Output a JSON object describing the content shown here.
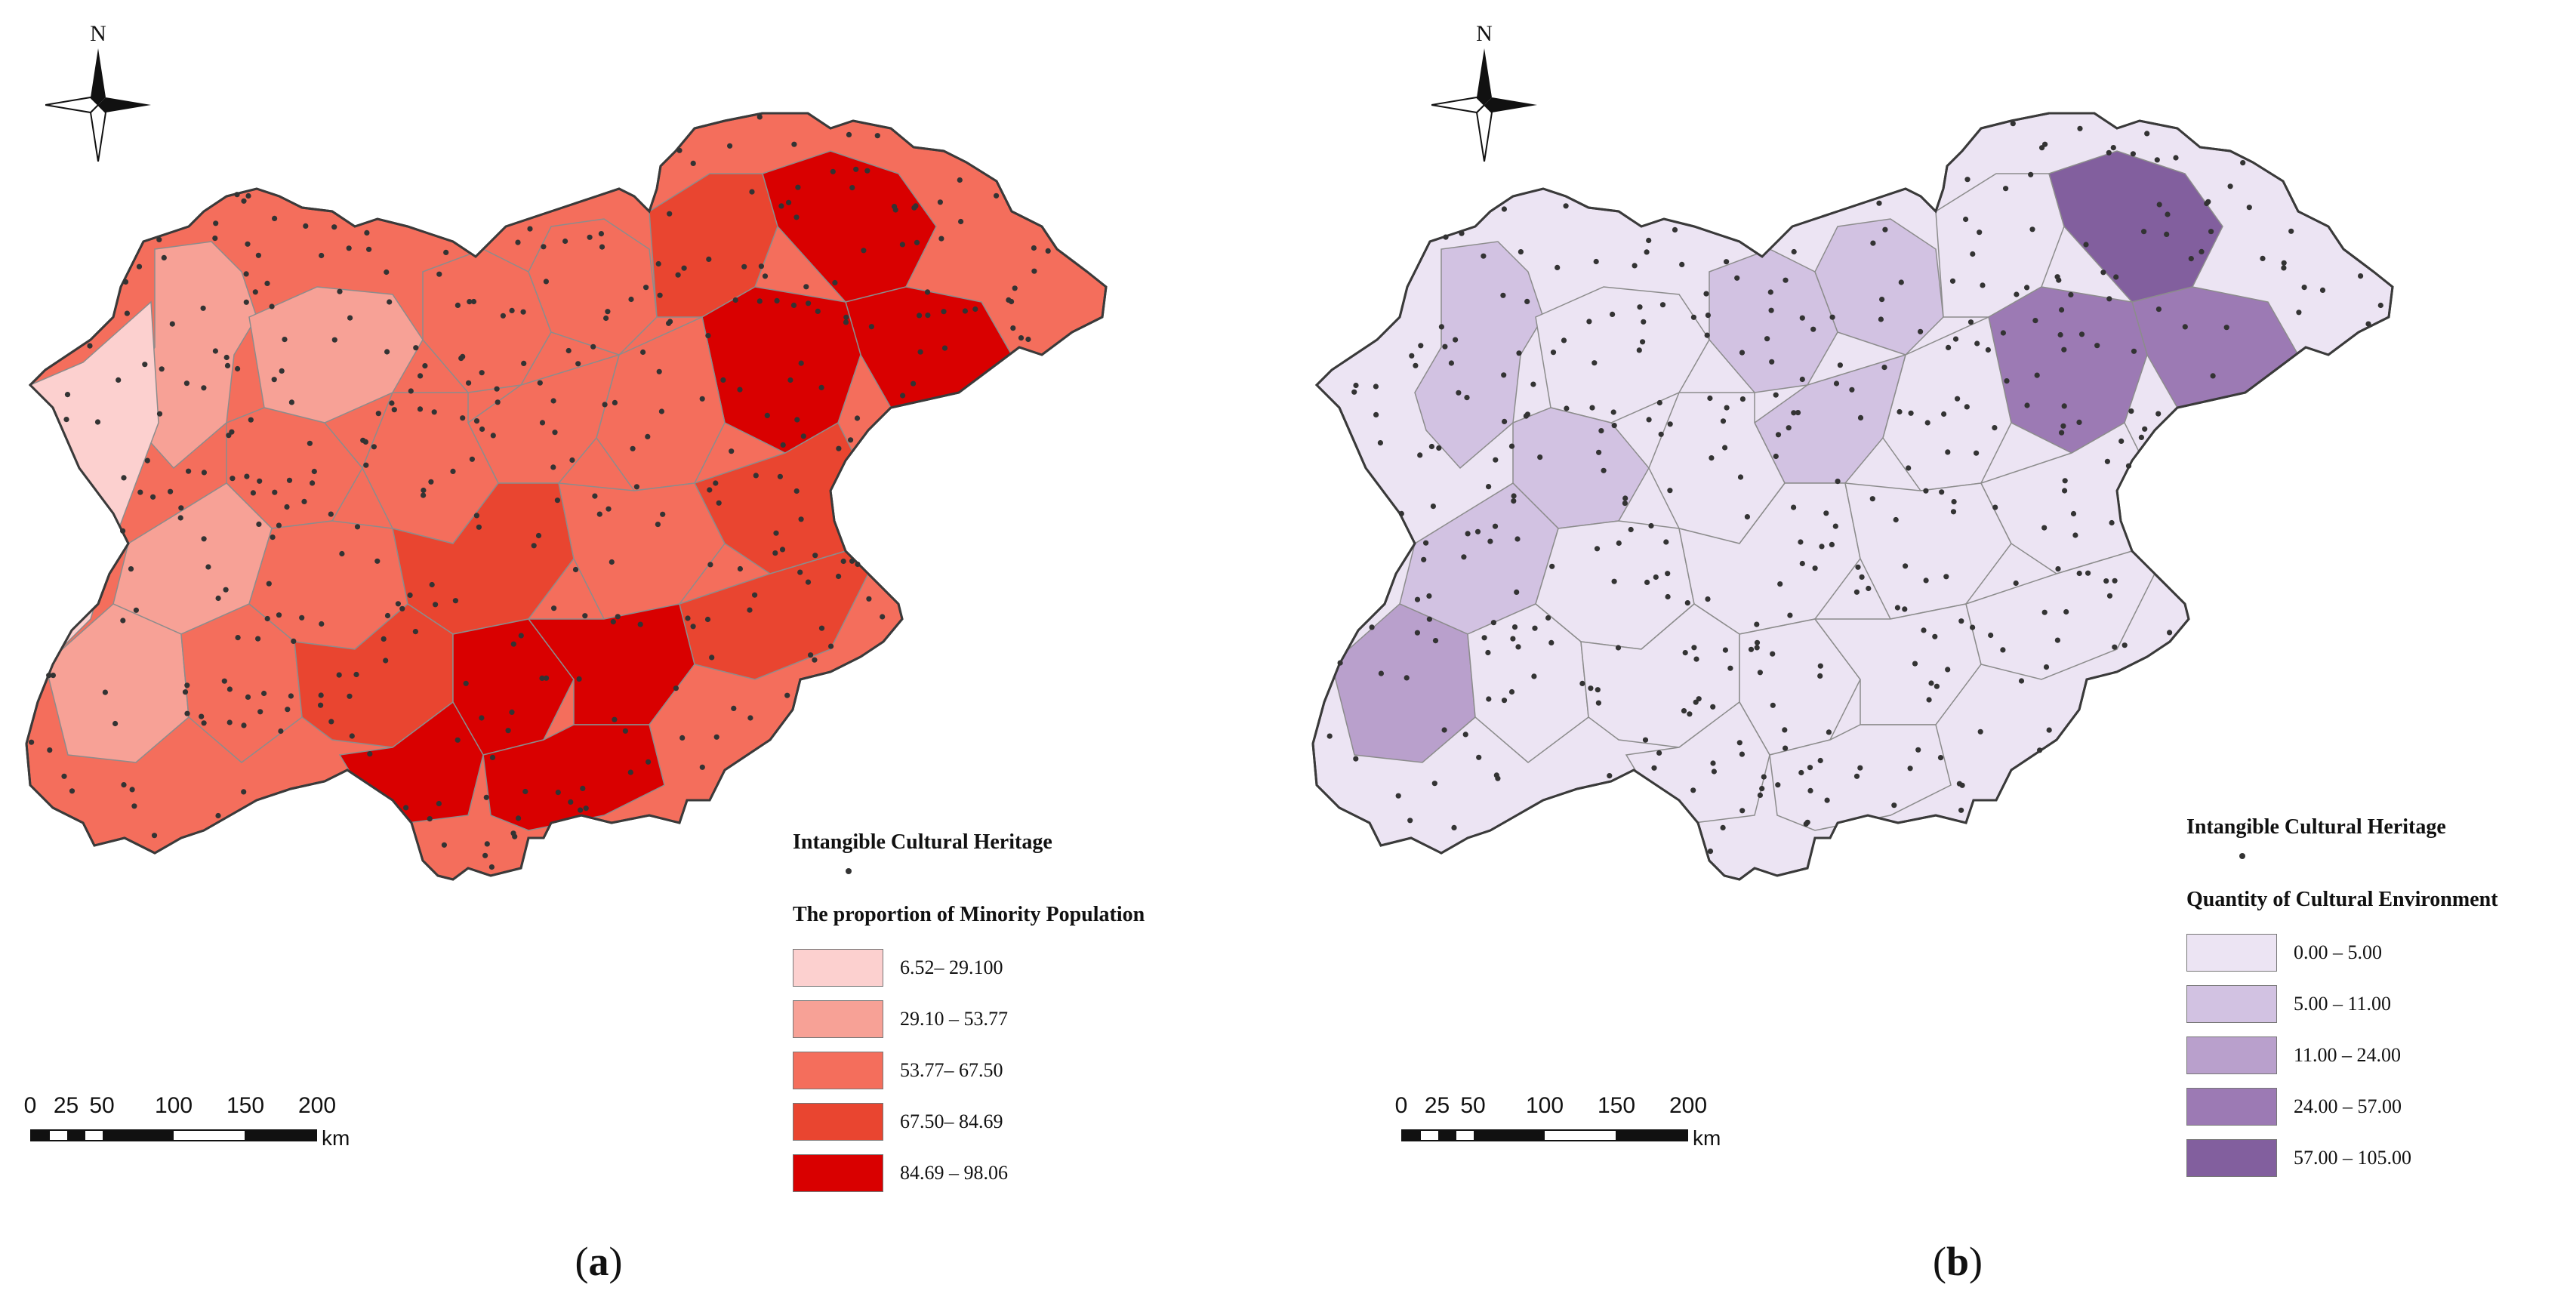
{
  "figure": {
    "common": {
      "north_label": "N",
      "north_icon": "north-arrow-icon",
      "scale": {
        "ticks": [
          "0",
          "25",
          "50",
          "100",
          "150",
          "200"
        ],
        "tick_km": [
          0,
          25,
          50,
          100,
          150,
          200
        ],
        "unit": "km"
      },
      "heritage_label": "Intangible Cultural Heritage",
      "heritage_symbol_color": "#333333",
      "boundary_colors": {
        "district": "#8c8c8c",
        "region": "#3a3a3a"
      }
    },
    "panels": [
      {
        "caption_letter": "a",
        "legend_title": "The proportion of Minority Population",
        "classes": [
          {
            "label": "6.52– 29.100",
            "color": "#fcd0cf"
          },
          {
            "label": "29.10 – 53.77",
            "color": "#f7a196"
          },
          {
            "label": "53.77– 67.50",
            "color": "#f46e5c"
          },
          {
            "label": "67.50– 84.69",
            "color": "#e94530"
          },
          {
            "label": "84.69 – 98.06",
            "color": "#d90000"
          }
        ],
        "mapped_pattern": "low proportions in the north-west, highest proportions across the east and south"
      },
      {
        "caption_letter": "b",
        "legend_title": "Quantity of Cultural Environment",
        "classes": [
          {
            "label": "0.00 – 5.00",
            "color": "#ece4f3"
          },
          {
            "label": "5.00 – 11.00",
            "color": "#d2c2e2"
          },
          {
            "label": "11.00 – 24.00",
            "color": "#b9a0cc"
          },
          {
            "label": "24.00 – 57.00",
            "color": "#9c7ab4"
          },
          {
            "label": "57.00 – 105.00",
            "color": "#825f9e"
          }
        ],
        "mapped_pattern": "highest quantities concentrated in the north-east, mostly lowest class elsewhere"
      }
    ]
  }
}
